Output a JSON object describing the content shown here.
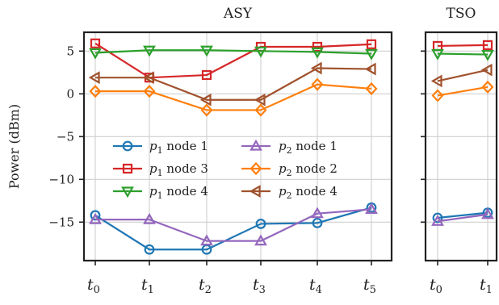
{
  "chart_data": {
    "type": "line",
    "ylabel": "Power (dBm)",
    "ylim": [
      -19.5,
      7.2
    ],
    "yticks": [
      5,
      0,
      -5,
      -10,
      -15
    ],
    "ytick_labels": [
      "5",
      "0",
      "−5",
      "−10",
      "−15"
    ],
    "grid": true,
    "legend_placement": "center-left",
    "panels": [
      {
        "title": "ASY",
        "x": [
          "t0",
          "t1",
          "t2",
          "t3",
          "t4",
          "t5"
        ],
        "xtick_labels": [
          {
            "base": "t",
            "sub": "0"
          },
          {
            "base": "t",
            "sub": "1"
          },
          {
            "base": "t",
            "sub": "2"
          },
          {
            "base": "t",
            "sub": "3"
          },
          {
            "base": "t",
            "sub": "4"
          },
          {
            "base": "t",
            "sub": "5"
          }
        ]
      },
      {
        "title": "TSO",
        "x": [
          "t0",
          "t1"
        ],
        "xtick_labels": [
          {
            "base": "t",
            "sub": "0"
          },
          {
            "base": "t",
            "sub": "1"
          }
        ]
      }
    ],
    "series": [
      {
        "legend_base": "p",
        "legend_sub": "1",
        "legend_rest": " node 1",
        "color": "#1f77b4",
        "marker": "circle",
        "ASY": [
          -14.2,
          -18.2,
          -18.2,
          -15.2,
          -15.1,
          -13.3
        ],
        "TSO": [
          -14.5,
          -13.9
        ]
      },
      {
        "legend_base": "p",
        "legend_sub": "1",
        "legend_rest": " node 3",
        "color": "#d62728",
        "marker": "square",
        "ASY": [
          5.9,
          1.9,
          2.2,
          5.5,
          5.5,
          5.8
        ],
        "TSO": [
          5.6,
          5.7
        ]
      },
      {
        "legend_base": "p",
        "legend_sub": "1",
        "legend_rest": " node 4",
        "color": "#2ca02c",
        "marker": "triangle-down",
        "ASY": [
          4.8,
          5.1,
          5.1,
          5.0,
          4.9,
          4.7
        ],
        "TSO": [
          4.7,
          4.6
        ]
      },
      {
        "legend_base": "p",
        "legend_sub": "2",
        "legend_rest": " node 1",
        "color": "#9467bd",
        "marker": "triangle-up",
        "ASY": [
          -14.7,
          -14.7,
          -17.2,
          -17.2,
          -14.0,
          -13.5
        ],
        "TSO": [
          -14.9,
          -14.1
        ]
      },
      {
        "legend_base": "p",
        "legend_sub": "2",
        "legend_rest": " node 2",
        "color": "#ff7f0e",
        "marker": "diamond",
        "ASY": [
          0.3,
          0.3,
          -1.9,
          -1.9,
          1.1,
          0.6
        ],
        "TSO": [
          -0.2,
          0.8
        ]
      },
      {
        "legend_base": "p",
        "legend_sub": "2",
        "legend_rest": " node 4",
        "color": "#a0522d",
        "marker": "triangle-left",
        "ASY": [
          1.9,
          1.9,
          -0.7,
          -0.7,
          3.0,
          2.9
        ],
        "TSO": [
          1.5,
          2.8
        ]
      }
    ]
  }
}
